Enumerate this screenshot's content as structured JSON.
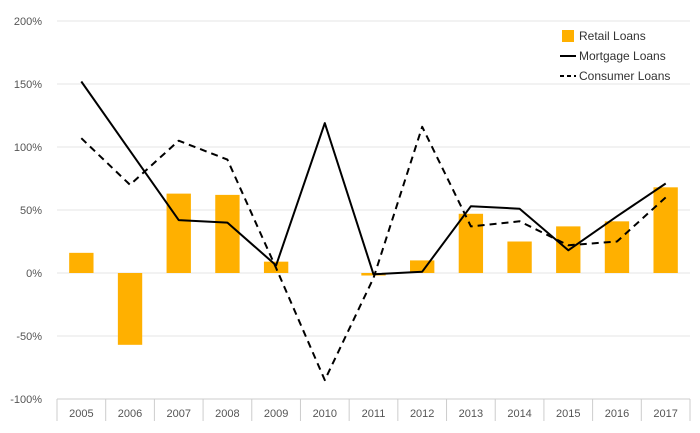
{
  "chart_data": {
    "type": "bar",
    "title": "",
    "xlabel": "",
    "ylabel": "",
    "categories": [
      "2005",
      "2006",
      "2007",
      "2008",
      "2009",
      "2010",
      "2011",
      "2012",
      "2013",
      "2014",
      "2015",
      "2016",
      "2017"
    ],
    "ylim": [
      -100,
      200
    ],
    "yticks": [
      -100,
      -50,
      0,
      50,
      100,
      150,
      200
    ],
    "ytick_labels": [
      "-100%",
      "-50%",
      "0%",
      "50%",
      "100%",
      "150%",
      "200%"
    ],
    "grid": true,
    "legend_position": "top-right",
    "series": [
      {
        "name": "Retail Loans",
        "kind": "bar",
        "color": "#FFB000",
        "values": [
          16,
          -57,
          63,
          62,
          9,
          0,
          -2,
          10,
          47,
          25,
          37,
          41,
          68
        ]
      },
      {
        "name": "Mortgage Loans",
        "kind": "line",
        "style": "solid",
        "color": "#000000",
        "values": [
          152,
          97,
          42,
          40,
          6,
          119,
          -1,
          1,
          53,
          51,
          18,
          45,
          71
        ]
      },
      {
        "name": "Consumer Loans",
        "kind": "line",
        "style": "dashed",
        "color": "#000000",
        "values": [
          107,
          70,
          105,
          90,
          4,
          -85,
          -4,
          116,
          37,
          41,
          22,
          25,
          60
        ]
      }
    ]
  }
}
